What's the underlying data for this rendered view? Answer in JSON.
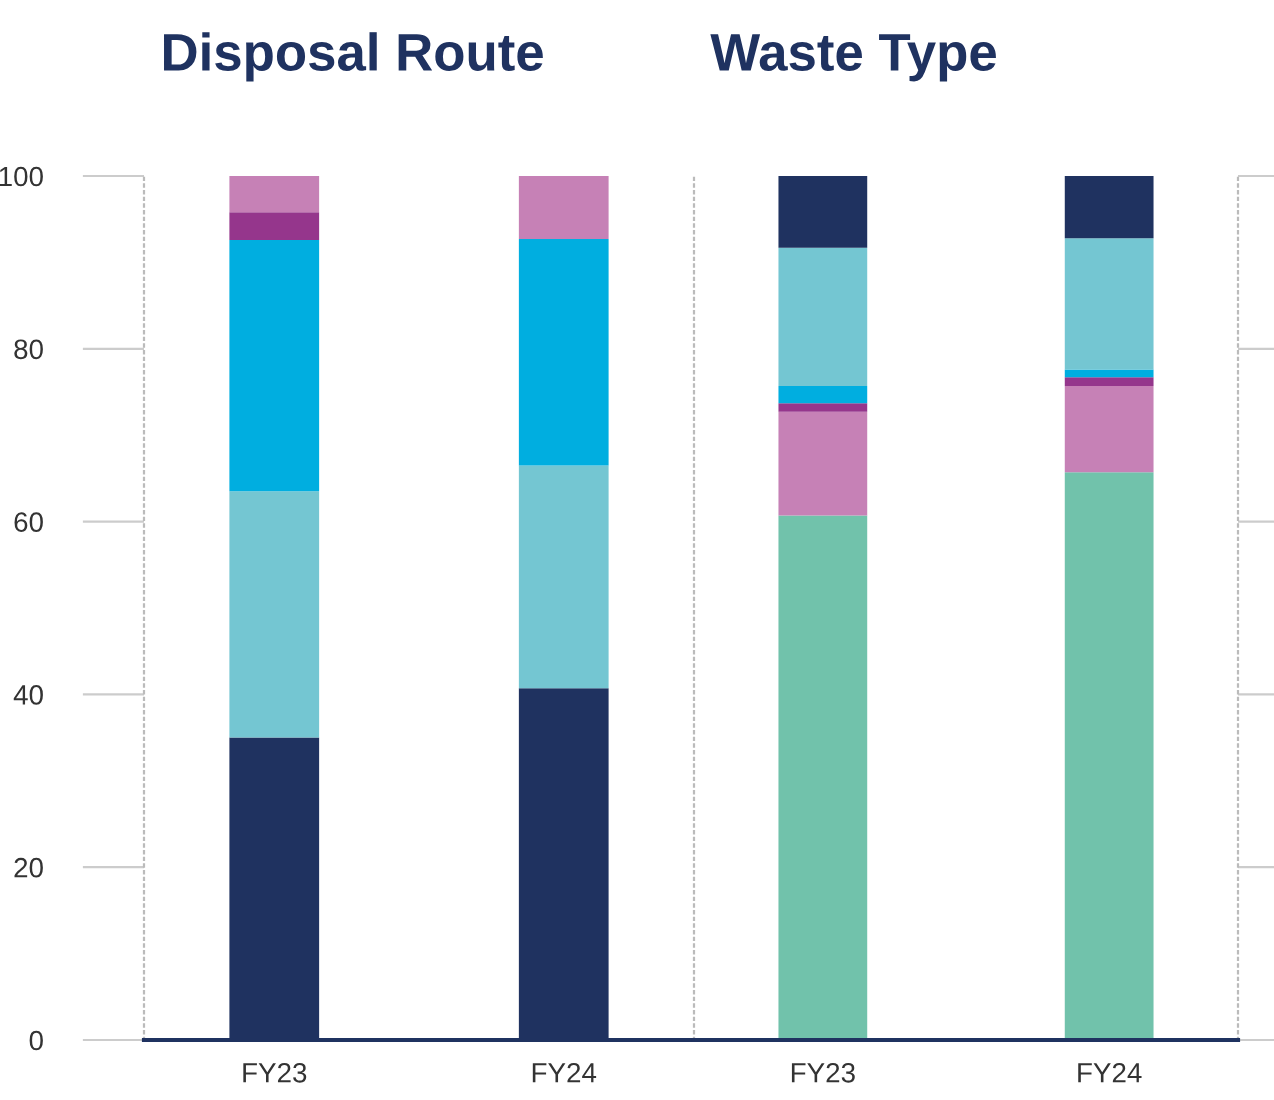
{
  "chart_data": [
    {
      "type": "bar",
      "stacked": true,
      "title": "Disposal Route",
      "categories": [
        "FY23",
        "FY24"
      ],
      "ylim": [
        0,
        100
      ],
      "yticks": [
        0,
        20,
        40,
        60,
        80,
        100
      ],
      "grid": false,
      "legend": false,
      "series": [
        {
          "color": "#1f3260",
          "values": [
            35,
            40.7
          ]
        },
        {
          "color": "#74c6d2",
          "values": [
            28.5,
            25.8
          ]
        },
        {
          "color": "#00aee0",
          "values": [
            29.1,
            26.2
          ]
        },
        {
          "color": "#95368c",
          "values": [
            3.2,
            0
          ]
        },
        {
          "color": "#c681b6",
          "values": [
            4.2,
            7.3
          ]
        }
      ]
    },
    {
      "type": "bar",
      "stacked": true,
      "title": "Waste Type",
      "categories": [
        "FY23",
        "FY24"
      ],
      "ylim": [
        0,
        100
      ],
      "yticks": [
        0,
        20,
        40,
        60,
        80,
        100
      ],
      "tick_labels": "x",
      "grid": false,
      "legend": false,
      "series": [
        {
          "color": "#71c2ab",
          "values": [
            60.7,
            65.7
          ]
        },
        {
          "color": "#c681b6",
          "values": [
            12,
            10
          ]
        },
        {
          "color": "#95368c",
          "values": [
            1,
            1
          ]
        },
        {
          "color": "#00aee0",
          "values": [
            2,
            0.9
          ]
        },
        {
          "color": "#74c6d2",
          "values": [
            16,
            15.2
          ]
        },
        {
          "color": "#1f3260",
          "values": [
            8.3,
            7.2
          ]
        }
      ]
    }
  ]
}
